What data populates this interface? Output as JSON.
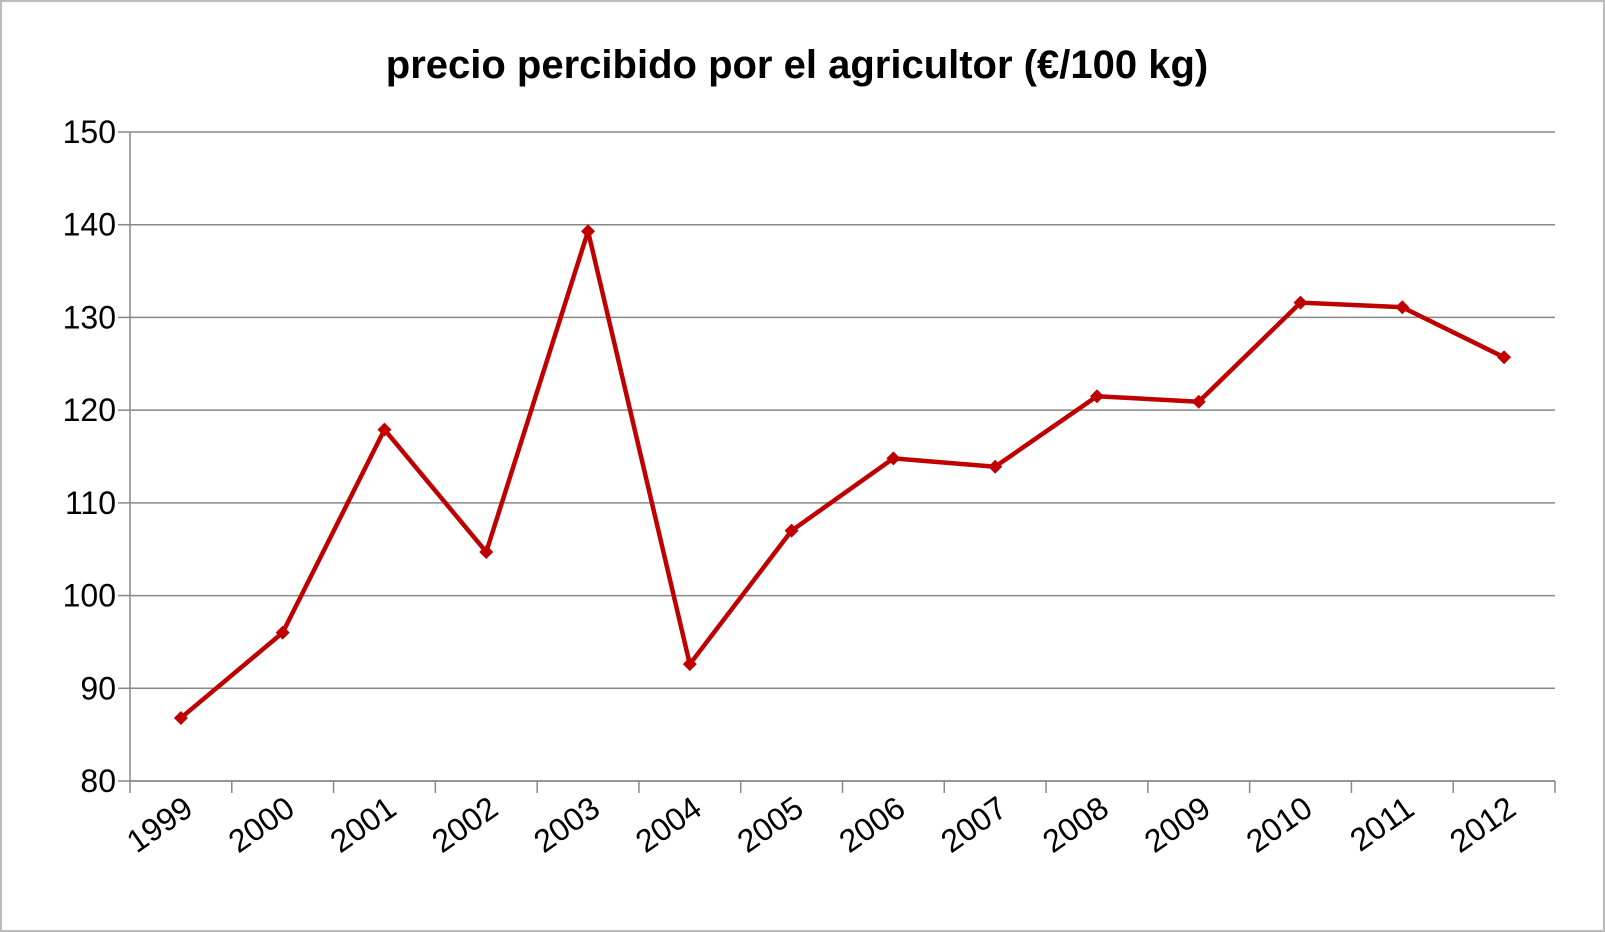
{
  "chart_data": {
    "type": "line",
    "title": "precio percibido por el agricultor (€/100 kg)",
    "categories": [
      "1999",
      "2000",
      "2001",
      "2002",
      "2003",
      "2004",
      "2005",
      "2006",
      "2007",
      "2008",
      "2009",
      "2010",
      "2011",
      "2012"
    ],
    "series": [
      {
        "name": "precio",
        "color": "#c00000",
        "values": [
          86.8,
          96.0,
          117.9,
          104.7,
          139.3,
          92.6,
          107.0,
          114.8,
          113.9,
          121.5,
          120.9,
          131.6,
          131.1,
          125.7
        ]
      }
    ],
    "ylim": [
      80,
      150
    ],
    "yticks": [
      80,
      90,
      100,
      110,
      120,
      130,
      140,
      150
    ],
    "grid": true
  }
}
